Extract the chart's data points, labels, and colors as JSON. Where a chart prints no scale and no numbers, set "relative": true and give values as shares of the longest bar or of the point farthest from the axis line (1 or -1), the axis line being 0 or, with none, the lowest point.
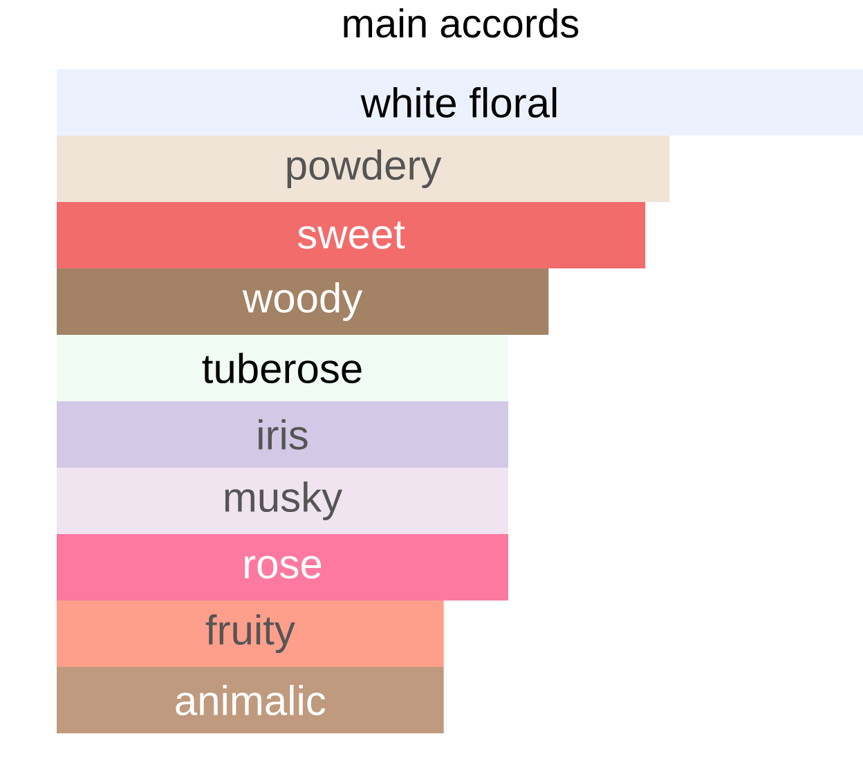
{
  "chart_data": {
    "type": "bar",
    "orientation": "horizontal",
    "relative": true,
    "title": "main accords",
    "categories": [
      "white floral",
      "powdery",
      "sweet",
      "woody",
      "tuberose",
      "iris",
      "musky",
      "rose",
      "fruity",
      "animalic"
    ],
    "values": [
      1,
      0.76,
      0.73,
      0.61,
      0.56,
      0.56,
      0.56,
      0.56,
      0.48,
      0.48
    ],
    "colors": [
      "#ecf2fd",
      "#f0e4d7",
      "#f26c6c",
      "#a38265",
      "#f1fcf5",
      "#d3c9e6",
      "#f0e4f1",
      "#fe79a0",
      "#fe9f8c",
      "#bf9a7e"
    ]
  }
}
